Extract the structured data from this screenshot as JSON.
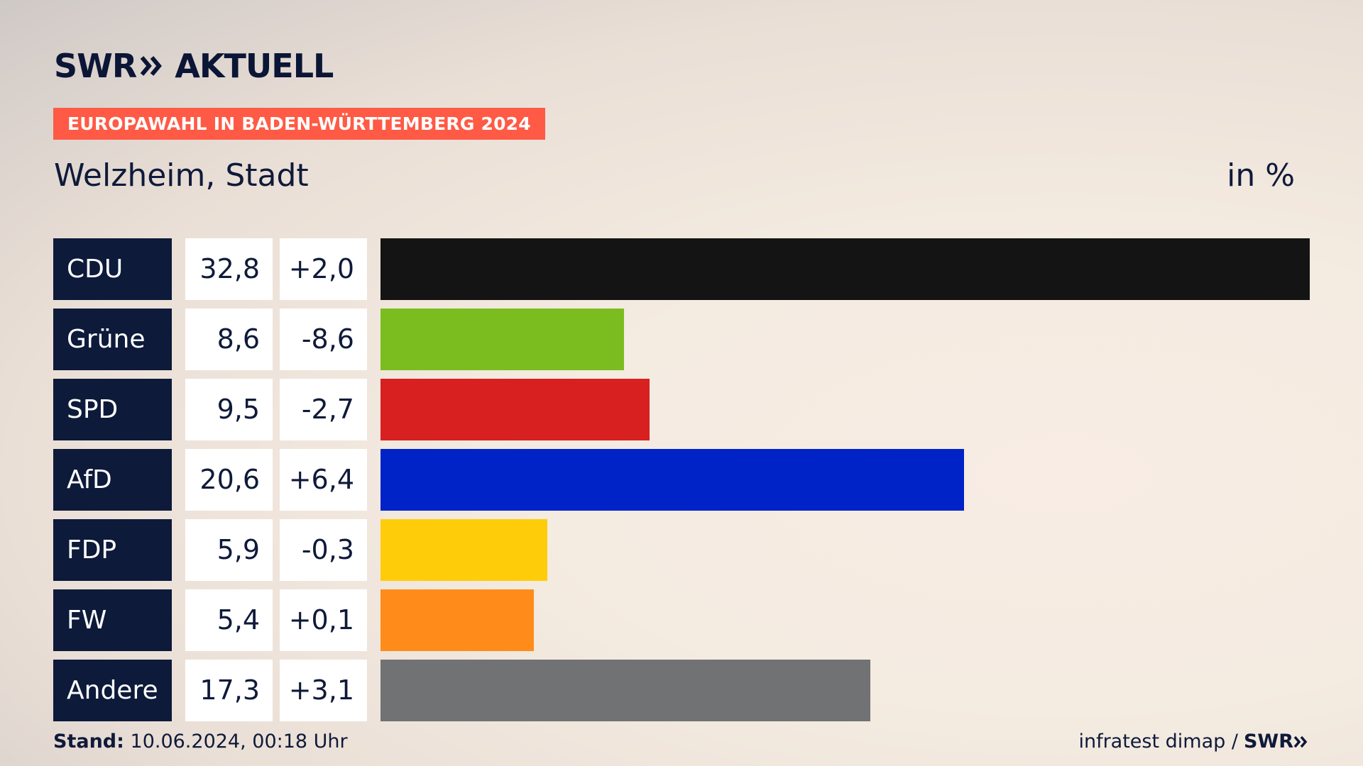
{
  "header": {
    "logo_text_left": "SWR",
    "logo_text_right": "AKTUELL",
    "tag": "EUROPAWAHL IN BADEN-WÜRTTEMBERG 2024",
    "region": "Welzheim, Stadt",
    "unit": "in %"
  },
  "footer": {
    "stand_label": "Stand:",
    "stand_value": "10.06.2024, 00:18 Uhr",
    "source": "infratest dimap /",
    "brand": "SWR"
  },
  "chart_data": {
    "type": "bar",
    "orientation": "horizontal",
    "categories": [
      "CDU",
      "Grüne",
      "SPD",
      "AfD",
      "FDP",
      "FW",
      "Andere"
    ],
    "values": [
      32.8,
      8.6,
      9.5,
      20.6,
      5.9,
      5.4,
      17.3
    ],
    "value_labels": [
      "32,8",
      "8,6",
      "9,5",
      "20,6",
      "5,9",
      "5,4",
      "17,3"
    ],
    "diff_labels": [
      "+2,0",
      "-8,6",
      "-2,7",
      "+6,4",
      "-0,3",
      "+0,1",
      "+3,1"
    ],
    "colors": [
      "#141414",
      "#7bbd1f",
      "#d7201f",
      "#0023c7",
      "#ffcc0a",
      "#ff8c1a",
      "#717273"
    ],
    "max": 32.8
  }
}
